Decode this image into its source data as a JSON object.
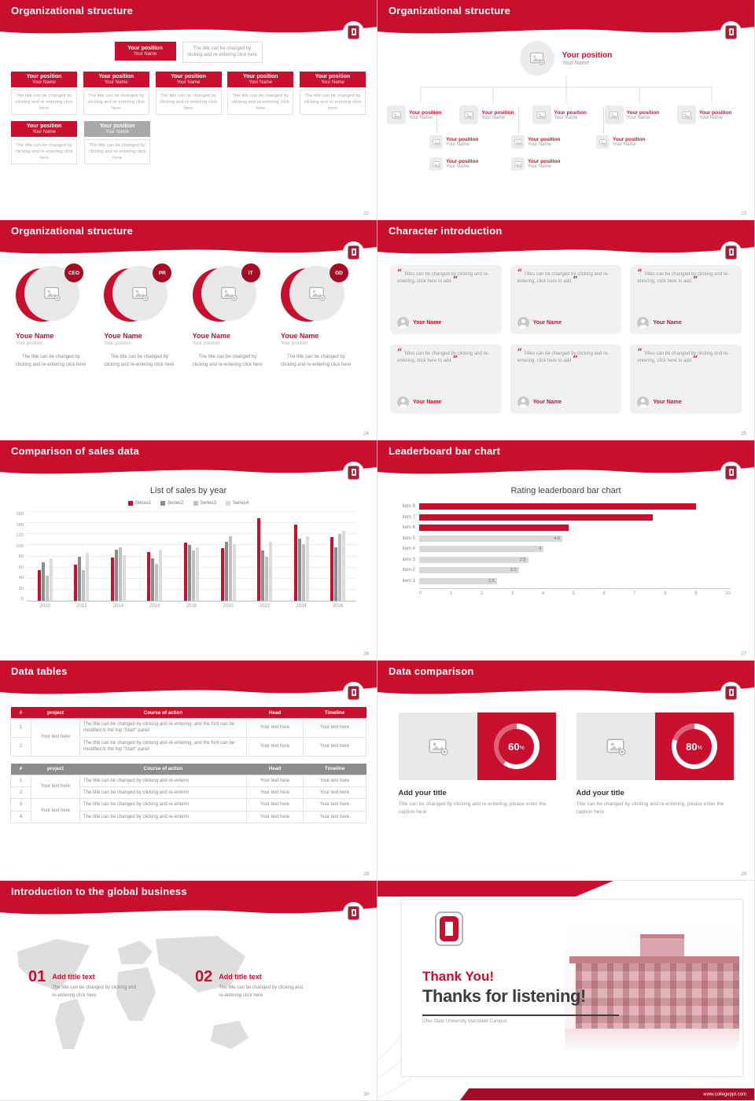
{
  "theme": {
    "accent": "#c8102e",
    "accent_dark": "#a50d26",
    "gray_box": "#a9a9a9",
    "placeholder_gray": "#ececec"
  },
  "slides": {
    "org_boxes": {
      "title": "Organizational structure",
      "page": "22",
      "position": "Your position",
      "name": "Your Name",
      "note": "The title can be changed by clicking and re-entering click here",
      "caption": "The title can be changed by clicking and re-entering click here"
    },
    "org_photos": {
      "title": "Organizational structure",
      "page": "23",
      "position": "Your position",
      "name": "Your Name"
    },
    "org_circles": {
      "title": "Organizational structure",
      "page": "24",
      "caption": "The title can be changed by clicking and re-entering click here",
      "members": [
        {
          "badge": "CEO",
          "name": "Youe Name",
          "position": "Your position"
        },
        {
          "badge": "PR",
          "name": "Youe Name",
          "position": "Your position"
        },
        {
          "badge": "IT",
          "name": "Youe Name",
          "position": "Your position"
        },
        {
          "badge": "GD",
          "name": "Youe Name",
          "position": "Your position"
        }
      ]
    },
    "characters": {
      "title": "Character introduction",
      "page": "25",
      "quote": "Titles can be changed by clicking and re-entering, click here to add",
      "name": "Your Name"
    },
    "sales": {
      "title": "Comparison of sales data",
      "page": "26"
    },
    "leaderboard": {
      "title": "Leaderboard bar chart",
      "page": "27"
    },
    "tables": {
      "title": "Data tables",
      "page": "28",
      "headers": [
        "#",
        "project",
        "Course of action",
        "Head",
        "Timeline"
      ],
      "row_numbers": [
        "1",
        "2",
        "3",
        "4"
      ],
      "project_cell": "Your text here",
      "long_text": "The title can be changed by clicking and re-entering, and the font can be modified in the top \"Start\" panel",
      "short_text": "The title can be changed by clicking and re-enterin",
      "head_cell": "Your text here",
      "timeline_cell": "Your text here"
    },
    "comparison": {
      "title": "Data comparison",
      "page": "29",
      "items": [
        {
          "percent": 60,
          "unit": "%",
          "title": "Add your title",
          "caption": "Title can be changed by clicking and re-entering, please enter the caption here"
        },
        {
          "percent": 80,
          "unit": "%",
          "title": "Add your title",
          "caption": "Title can be changed by clicking and re-entering, please enter the caption here"
        }
      ]
    },
    "global": {
      "title": "Introduction to the global business",
      "page": "30",
      "items": [
        {
          "num": "01",
          "title": "Add title text",
          "caption": "The title can be changed by clicking and re-entering click here"
        },
        {
          "num": "02",
          "title": "Add title text",
          "caption": "The title can be changed by clicking and re-entering click here"
        }
      ]
    },
    "thanks": {
      "title_red": "Thank You!",
      "title_dark": "Thanks for listening!",
      "subtitle": "Ohio State University Mansfield Campus",
      "footer": "www.collegeppt.com"
    }
  },
  "chart_data": [
    {
      "id": "sales",
      "type": "bar",
      "title": "List of sales by year",
      "categories": [
        "2010",
        "2012",
        "2014",
        "2016",
        "2018",
        "2020",
        "2022",
        "2024",
        "2026"
      ],
      "series": [
        {
          "name": "Series1",
          "color": "#c8102e",
          "values": [
            55,
            65,
            78,
            88,
            105,
            95,
            148,
            138,
            115
          ]
        },
        {
          "name": "Series2",
          "color": "#8c8c8c",
          "values": [
            70,
            80,
            92,
            76,
            100,
            106,
            90,
            112,
            96
          ]
        },
        {
          "name": "Series3",
          "color": "#bfbfbf",
          "values": [
            45,
            55,
            96,
            66,
            90,
            116,
            80,
            102,
            120
          ]
        },
        {
          "name": "Series4",
          "color": "#dcdcdc",
          "values": [
            76,
            86,
            82,
            92,
            96,
            102,
            106,
            116,
            126
          ]
        }
      ],
      "ylim": [
        0,
        160
      ],
      "yticks": [
        0,
        20,
        40,
        60,
        80,
        100,
        120,
        140,
        160
      ],
      "xlabel": "",
      "ylabel": "",
      "grid": true,
      "legend_position": "top"
    },
    {
      "id": "leaderboard",
      "type": "bar-horizontal",
      "title": "Rating leaderboard bar chart",
      "categories": [
        "item 1",
        "item 2",
        "item 3",
        "item 4",
        "item 5",
        "item 6",
        "item 7",
        "item 8"
      ],
      "values": [
        2.5,
        3.2,
        3.5,
        4,
        4.6,
        4.8,
        7.5,
        8.9
      ],
      "value_labels": [
        "2.5",
        "3.2",
        "3.5",
        "4",
        "4.6",
        "",
        "",
        ""
      ],
      "bar_colors": [
        "#d9d9d9",
        "#d9d9d9",
        "#d9d9d9",
        "#d9d9d9",
        "#d9d9d9",
        "#c8102e",
        "#c8102e",
        "#c8102e"
      ],
      "xlim": [
        0,
        10
      ],
      "xticks": [
        0,
        1,
        2,
        3,
        4,
        5,
        6,
        7,
        8,
        9,
        10
      ],
      "grid": false,
      "legend_position": "none"
    }
  ]
}
